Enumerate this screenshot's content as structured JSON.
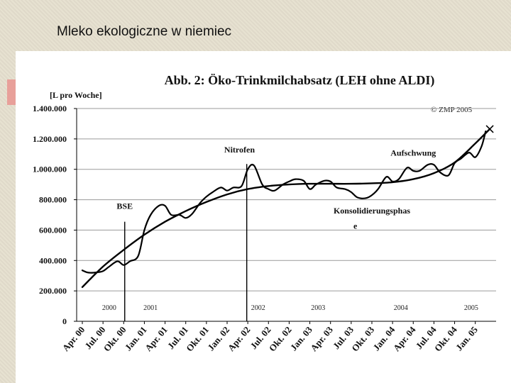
{
  "slide": {
    "title": "Mleko ekologiczne w niemiec"
  },
  "chart_data": {
    "type": "line",
    "title": "Abb. 2: Öko-Trinkmilchabsatz (LEH ohne ALDI)",
    "ylabel": "[L pro Woche]",
    "copyright": "© ZMP 2005",
    "ylim": [
      0,
      1400000
    ],
    "y_ticks": [
      {
        "value": 0,
        "label": "0"
      },
      {
        "value": 200000,
        "label": "200.000"
      },
      {
        "value": 400000,
        "label": "400.000"
      },
      {
        "value": 600000,
        "label": "600.000"
      },
      {
        "value": 800000,
        "label": "800.000"
      },
      {
        "value": 1000000,
        "label": "1.000.000"
      },
      {
        "value": 1200000,
        "label": "1.200.000"
      },
      {
        "value": 1400000,
        "label": "1.400.000"
      }
    ],
    "categories": [
      "Apr. 00",
      "Jul. 00",
      "Okt. 00",
      "Jan. 01",
      "Apr. 01",
      "Jul. 01",
      "Okt. 01",
      "Jan. 02",
      "Apr. 02",
      "Jul. 02",
      "Okt. 02",
      "Jan. 03",
      "Apr. 03",
      "Jul. 03",
      "Okt. 03",
      "Jan. 04",
      "Apr. 04",
      "Jul. 04",
      "Okt. 04",
      "Jan. 05"
    ],
    "year_labels": [
      {
        "x": 1.3,
        "label": "2000"
      },
      {
        "x": 3.3,
        "label": "2001"
      },
      {
        "x": 8.5,
        "label": "2002"
      },
      {
        "x": 11.4,
        "label": "2003"
      },
      {
        "x": 15.4,
        "label": "2004"
      },
      {
        "x": 18.8,
        "label": "2005"
      }
    ],
    "annotations": [
      {
        "label": "BSE",
        "x": 2.05,
        "y": 740000
      },
      {
        "label": "Nitrofen",
        "x": 7.6,
        "y": 1110000
      },
      {
        "label": "Aufschwung",
        "x": 16.0,
        "y": 1090000
      },
      {
        "label": "Konsolidierungsphas",
        "x": 14.0,
        "y": 710000
      },
      {
        "label": "e",
        "x": 13.2,
        "y": 610000
      }
    ],
    "vlines": [
      {
        "x": 2.05,
        "y_top": 655000
      },
      {
        "x": 7.95,
        "y_top": 1035000
      }
    ],
    "series": [
      {
        "style": "actual",
        "x": [
          0,
          0.3,
          0.7,
          1.0,
          1.3,
          1.7,
          2.0,
          2.3,
          2.7,
          3.0,
          3.3,
          3.7,
          4.0,
          4.3,
          4.7,
          5.0,
          5.3,
          5.7,
          6.0,
          6.3,
          6.7,
          7.0,
          7.3,
          7.7,
          8.0,
          8.3,
          8.7,
          9.0,
          9.3,
          9.7,
          10.0,
          10.3,
          10.7,
          11.0,
          11.3,
          11.7,
          12.0,
          12.3,
          12.7,
          13.0,
          13.3,
          13.7,
          14.0,
          14.3,
          14.7,
          15.0,
          15.3,
          15.7,
          16.0,
          16.3,
          16.7,
          17.0,
          17.3,
          17.7,
          18.0,
          18.3,
          18.7,
          19.0,
          19.3,
          19.5
        ],
        "y": [
          335000,
          320000,
          322000,
          330000,
          360000,
          395000,
          370000,
          395000,
          430000,
          600000,
          700000,
          760000,
          760000,
          700000,
          700000,
          680000,
          705000,
          780000,
          820000,
          850000,
          880000,
          860000,
          880000,
          890000,
          1000000,
          1025000,
          900000,
          870000,
          860000,
          900000,
          920000,
          935000,
          925000,
          870000,
          900000,
          925000,
          920000,
          880000,
          870000,
          850000,
          815000,
          810000,
          830000,
          870000,
          950000,
          920000,
          935000,
          1010000,
          990000,
          990000,
          1030000,
          1030000,
          980000,
          960000,
          1040000,
          1070000,
          1110000,
          1080000,
          1150000,
          1250000
        ]
      },
      {
        "style": "trend",
        "x": [
          0,
          1,
          2,
          3,
          4,
          5,
          6,
          7,
          8,
          9,
          10,
          11,
          12,
          13,
          14,
          15,
          16,
          17,
          18,
          19,
          19.7
        ],
        "y": [
          225000,
          360000,
          470000,
          570000,
          655000,
          725000,
          785000,
          835000,
          870000,
          890000,
          900000,
          905000,
          905000,
          905000,
          908000,
          915000,
          935000,
          975000,
          1045000,
          1170000,
          1265000
        ]
      }
    ],
    "grid": true,
    "legend": "none"
  }
}
